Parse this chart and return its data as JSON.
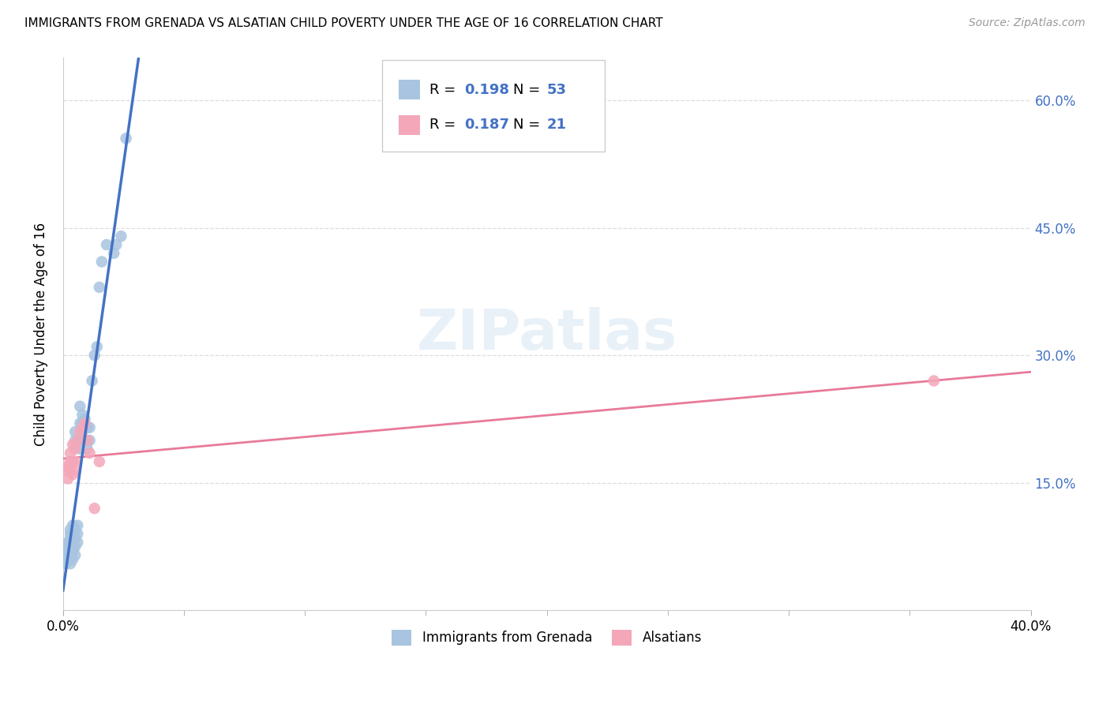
{
  "title": "IMMIGRANTS FROM GRENADA VS ALSATIAN CHILD POVERTY UNDER THE AGE OF 16 CORRELATION CHART",
  "source": "Source: ZipAtlas.com",
  "ylabel": "Child Poverty Under the Age of 16",
  "xmin": 0.0,
  "xmax": 0.4,
  "ymin": 0.0,
  "ymax": 0.65,
  "color_blue": "#a8c4e0",
  "color_pink": "#f4a7b9",
  "line_blue": "#4472c4",
  "line_pink": "#e87a9a",
  "trendline_blue_dashed": "#b8d0ea",
  "grenada_x": [
    0.001,
    0.001,
    0.002,
    0.002,
    0.002,
    0.002,
    0.003,
    0.003,
    0.003,
    0.003,
    0.003,
    0.003,
    0.003,
    0.004,
    0.004,
    0.004,
    0.004,
    0.004,
    0.005,
    0.005,
    0.005,
    0.005,
    0.005,
    0.005,
    0.006,
    0.006,
    0.006,
    0.007,
    0.007,
    0.007,
    0.007,
    0.008,
    0.008,
    0.008,
    0.008,
    0.009,
    0.009,
    0.009,
    0.01,
    0.01,
    0.01,
    0.011,
    0.011,
    0.012,
    0.013,
    0.014,
    0.015,
    0.016,
    0.018,
    0.021,
    0.022,
    0.024,
    0.026
  ],
  "grenada_y": [
    0.055,
    0.065,
    0.06,
    0.07,
    0.075,
    0.08,
    0.055,
    0.06,
    0.07,
    0.08,
    0.085,
    0.09,
    0.095,
    0.06,
    0.07,
    0.08,
    0.09,
    0.1,
    0.065,
    0.075,
    0.085,
    0.095,
    0.2,
    0.21,
    0.08,
    0.09,
    0.1,
    0.19,
    0.2,
    0.22,
    0.24,
    0.2,
    0.21,
    0.22,
    0.23,
    0.2,
    0.215,
    0.225,
    0.19,
    0.2,
    0.215,
    0.2,
    0.215,
    0.27,
    0.3,
    0.31,
    0.38,
    0.41,
    0.43,
    0.42,
    0.43,
    0.44,
    0.555
  ],
  "alsatian_x": [
    0.001,
    0.002,
    0.002,
    0.003,
    0.003,
    0.003,
    0.004,
    0.004,
    0.004,
    0.005,
    0.005,
    0.005,
    0.006,
    0.007,
    0.008,
    0.009,
    0.01,
    0.011,
    0.013,
    0.015,
    0.36
  ],
  "alsatian_y": [
    0.165,
    0.155,
    0.17,
    0.165,
    0.175,
    0.185,
    0.16,
    0.175,
    0.195,
    0.165,
    0.175,
    0.19,
    0.2,
    0.21,
    0.215,
    0.22,
    0.2,
    0.185,
    0.12,
    0.175,
    0.27
  ],
  "background_color": "#ffffff",
  "grid_color": "#dddddd",
  "blue_trendline_x_start": 0.0,
  "blue_trendline_x_end_solid": 0.048,
  "blue_trendline_x_end_dashed": 0.4,
  "pink_trendline_x_start": 0.0,
  "pink_trendline_x_end": 0.4
}
